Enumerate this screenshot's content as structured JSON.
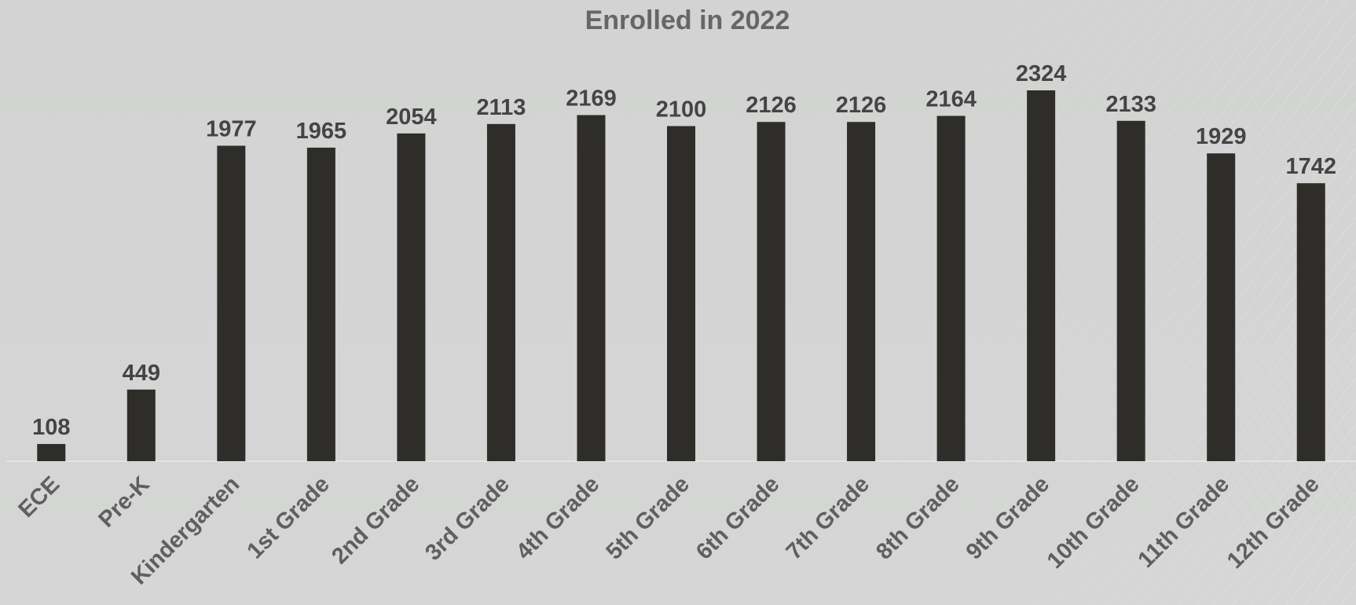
{
  "chart_data": {
    "type": "bar",
    "title": "Enrolled in 2022",
    "xlabel": "",
    "ylabel": "",
    "categories": [
      "ECE",
      "Pre-K",
      "Kindergarten",
      "1st Grade",
      "2nd Grade",
      "3rd Grade",
      "4th Grade",
      "5th Grade",
      "6th Grade",
      "7th Grade",
      "8th Grade",
      "9th Grade",
      "10th Grade",
      "11th Grade",
      "12th Grade"
    ],
    "values": [
      108,
      449,
      1977,
      1965,
      2054,
      2113,
      2169,
      2100,
      2126,
      2126,
      2164,
      2324,
      2133,
      1929,
      1742
    ],
    "ylim": [
      0,
      2324
    ],
    "grid": false,
    "legend": "none",
    "colors": {
      "background": "#d4d5d4",
      "bar": "#2e2d2a",
      "title": "#666666",
      "data_label": "#444444",
      "category_label": "#5f5f5f",
      "axis_line": "#e8e8e8"
    }
  }
}
